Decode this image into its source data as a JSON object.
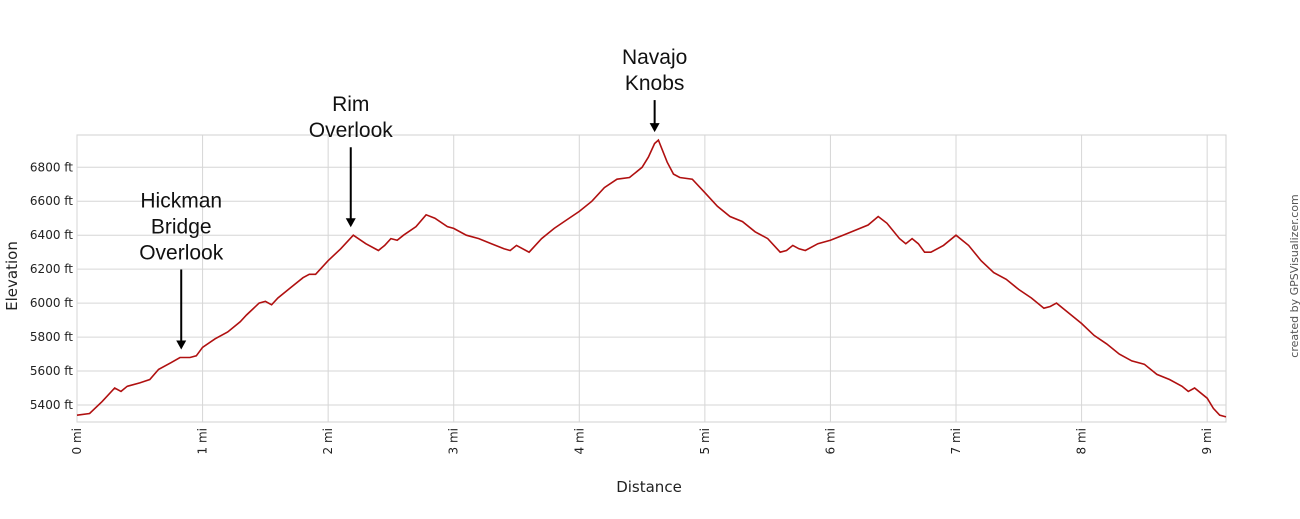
{
  "chart_data": {
    "type": "line",
    "title": "",
    "xlabel": "Distance",
    "ylabel": "Elevation",
    "xlim": [
      0,
      9.15
    ],
    "ylim": [
      5300,
      6990
    ],
    "grid": true,
    "x_ticks": [
      {
        "value": 0,
        "label": "0 mi"
      },
      {
        "value": 1,
        "label": "1 mi"
      },
      {
        "value": 2,
        "label": "2 mi"
      },
      {
        "value": 3,
        "label": "3 mi"
      },
      {
        "value": 4,
        "label": "4 mi"
      },
      {
        "value": 5,
        "label": "5 mi"
      },
      {
        "value": 6,
        "label": "6 mi"
      },
      {
        "value": 7,
        "label": "7 mi"
      },
      {
        "value": 8,
        "label": "8 mi"
      },
      {
        "value": 9,
        "label": "9 mi"
      }
    ],
    "y_ticks": [
      {
        "value": 5400,
        "label": "5400 ft"
      },
      {
        "value": 5600,
        "label": "5600 ft"
      },
      {
        "value": 5800,
        "label": "5800 ft"
      },
      {
        "value": 6000,
        "label": "6000 ft"
      },
      {
        "value": 6200,
        "label": "6200 ft"
      },
      {
        "value": 6400,
        "label": "6400 ft"
      },
      {
        "value": 6600,
        "label": "6600 ft"
      },
      {
        "value": 6800,
        "label": "6800 ft"
      }
    ],
    "series_color": "#b01010",
    "series": [
      {
        "x": [
          0,
          0.1,
          0.2,
          0.3,
          0.35,
          0.4,
          0.5,
          0.58,
          0.65,
          0.75,
          0.82,
          0.9,
          0.95,
          1.0,
          1.1,
          1.2,
          1.3,
          1.35,
          1.45,
          1.5,
          1.55,
          1.6,
          1.7,
          1.8,
          1.85,
          1.9,
          2.0,
          2.1,
          2.2,
          2.3,
          2.4,
          2.45,
          2.5,
          2.55,
          2.6,
          2.7,
          2.78,
          2.85,
          2.95,
          3.0,
          3.1,
          3.2,
          3.3,
          3.4,
          3.45,
          3.5,
          3.6,
          3.7,
          3.8,
          3.9,
          4.0,
          4.1,
          4.2,
          4.3,
          4.4,
          4.5,
          4.55,
          4.6,
          4.63,
          4.7,
          4.75,
          4.8,
          4.9,
          5.0,
          5.1,
          5.2,
          5.3,
          5.4,
          5.5,
          5.6,
          5.65,
          5.7,
          5.75,
          5.8,
          5.9,
          6.0,
          6.1,
          6.2,
          6.3,
          6.38,
          6.45,
          6.55,
          6.6,
          6.65,
          6.7,
          6.75,
          6.8,
          6.9,
          7.0,
          7.1,
          7.2,
          7.3,
          7.4,
          7.5,
          7.6,
          7.7,
          7.75,
          7.8,
          7.9,
          8.0,
          8.1,
          8.2,
          8.3,
          8.4,
          8.5,
          8.6,
          8.7,
          8.8,
          8.85,
          8.9,
          9.0,
          9.05,
          9.1,
          9.15
        ],
        "y": [
          5340,
          5350,
          5420,
          5500,
          5480,
          5510,
          5530,
          5550,
          5610,
          5650,
          5680,
          5680,
          5690,
          5740,
          5790,
          5830,
          5890,
          5930,
          6000,
          6010,
          5990,
          6030,
          6090,
          6150,
          6170,
          6170,
          6250,
          6320,
          6400,
          6350,
          6310,
          6340,
          6380,
          6370,
          6400,
          6450,
          6520,
          6500,
          6450,
          6440,
          6400,
          6380,
          6350,
          6320,
          6310,
          6340,
          6300,
          6380,
          6440,
          6490,
          6540,
          6600,
          6680,
          6730,
          6740,
          6800,
          6860,
          6940,
          6960,
          6830,
          6760,
          6740,
          6730,
          6650,
          6570,
          6510,
          6480,
          6420,
          6380,
          6300,
          6310,
          6340,
          6320,
          6310,
          6350,
          6370,
          6400,
          6430,
          6460,
          6510,
          6470,
          6380,
          6350,
          6380,
          6350,
          6300,
          6300,
          6340,
          6400,
          6340,
          6250,
          6180,
          6140,
          6080,
          6030,
          5970,
          5980,
          6000,
          5940,
          5880,
          5810,
          5760,
          5700,
          5660,
          5640,
          5580,
          5550,
          5510,
          5480,
          5500,
          5440,
          5380,
          5340,
          5330
        ]
      }
    ],
    "annotations": [
      {
        "lines": [
          "Hickman",
          "Bridge",
          "Overlook"
        ],
        "x": 0.83,
        "y": 5680
      },
      {
        "lines": [
          "Rim",
          "Overlook"
        ],
        "x": 2.18,
        "y": 6400
      },
      {
        "lines": [
          "Navajo",
          "Knobs"
        ],
        "x": 4.6,
        "y": 6960
      }
    ]
  },
  "credit": "created by GPSVisualizer.com"
}
